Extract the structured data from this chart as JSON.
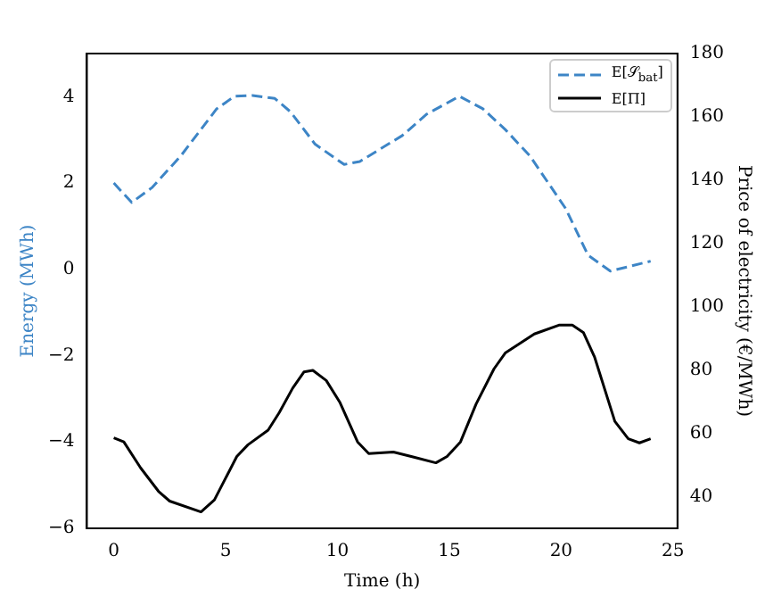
{
  "chart_data": {
    "type": "line",
    "xlabel": "Time (h)",
    "ylabel": "Energy (MWh)",
    "y2label": "Price of electricity (€/MWh)",
    "xlim": [
      -1.2,
      25.2
    ],
    "xticks": [
      0,
      5,
      10,
      15,
      20,
      25
    ],
    "ylim": [
      -6,
      5
    ],
    "yticks": [
      {
        "value": -6,
        "label": "−6"
      },
      {
        "value": -4,
        "label": "−4"
      },
      {
        "value": -2,
        "label": "−2"
      },
      0,
      2,
      4
    ],
    "y2lim": [
      30,
      180
    ],
    "y2ticks": [
      40,
      60,
      80,
      100,
      120,
      140,
      160,
      180
    ],
    "grid": false,
    "legend": "top right",
    "series": [
      {
        "name": "E[𝒮$_{bat}$]",
        "color": "#3d85c6",
        "line_style": "dashed",
        "axis": "y",
        "x": [
          0,
          0.8,
          1.7,
          3,
          4.6,
          5.4,
          6.2,
          7.2,
          7.9,
          9,
          10.3,
          11,
          12.9,
          14,
          15.45,
          16.5,
          17.5,
          18.6,
          20.2,
          21.2,
          22.2,
          24
        ],
        "values": [
          2.0,
          1.55,
          1.89,
          2.63,
          3.72,
          4.01,
          4.03,
          3.96,
          3.65,
          2.9,
          2.43,
          2.5,
          3.1,
          3.6,
          4.01,
          3.72,
          3.24,
          2.63,
          1.41,
          0.33,
          -0.04,
          0.19
        ]
      },
      {
        "name": "E[Π]",
        "color": "#000000",
        "line_style": "solid",
        "axis": "y2",
        "x": [
          0,
          0.45,
          1.2,
          2,
          2.5,
          3.9,
          4.5,
          5.5,
          6,
          6.9,
          7.4,
          8,
          8.5,
          8.9,
          9.5,
          10.1,
          10.9,
          11.4,
          12.5,
          13.3,
          14.4,
          14.9,
          15.5,
          16.2,
          17,
          17.5,
          18.8,
          19.9,
          20.5,
          21,
          21.5,
          22.4,
          23,
          23.5,
          24
        ],
        "values": [
          58.6,
          57.3,
          49.1,
          41.7,
          38.6,
          35.2,
          39,
          52.7,
          56.4,
          61,
          66.6,
          74.3,
          79.4,
          79.9,
          76.7,
          69.9,
          57.3,
          53.6,
          54.1,
          52.7,
          50.7,
          52.7,
          57.3,
          69.3,
          80.4,
          85.4,
          91.4,
          94.2,
          94.2,
          91.8,
          84,
          63.8,
          58.3,
          57,
          58.3
        ]
      }
    ]
  }
}
